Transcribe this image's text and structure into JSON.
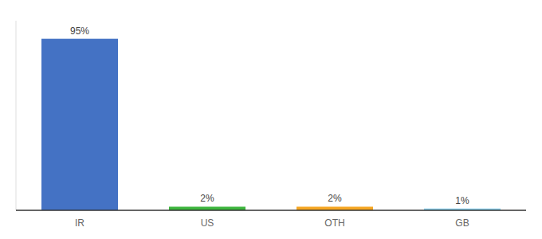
{
  "chart_data": {
    "type": "bar",
    "categories": [
      "IR",
      "US",
      "OTH",
      "GB"
    ],
    "values": [
      95,
      2,
      2,
      1
    ],
    "value_labels": [
      "95%",
      "2%",
      "2%",
      "1%"
    ],
    "colors": [
      "#4472c4",
      "#3db53d",
      "#f5a623",
      "#87ceeb"
    ],
    "ylim": [
      0,
      105
    ],
    "data_labels": true,
    "tick_labels": "x",
    "grid": false
  }
}
